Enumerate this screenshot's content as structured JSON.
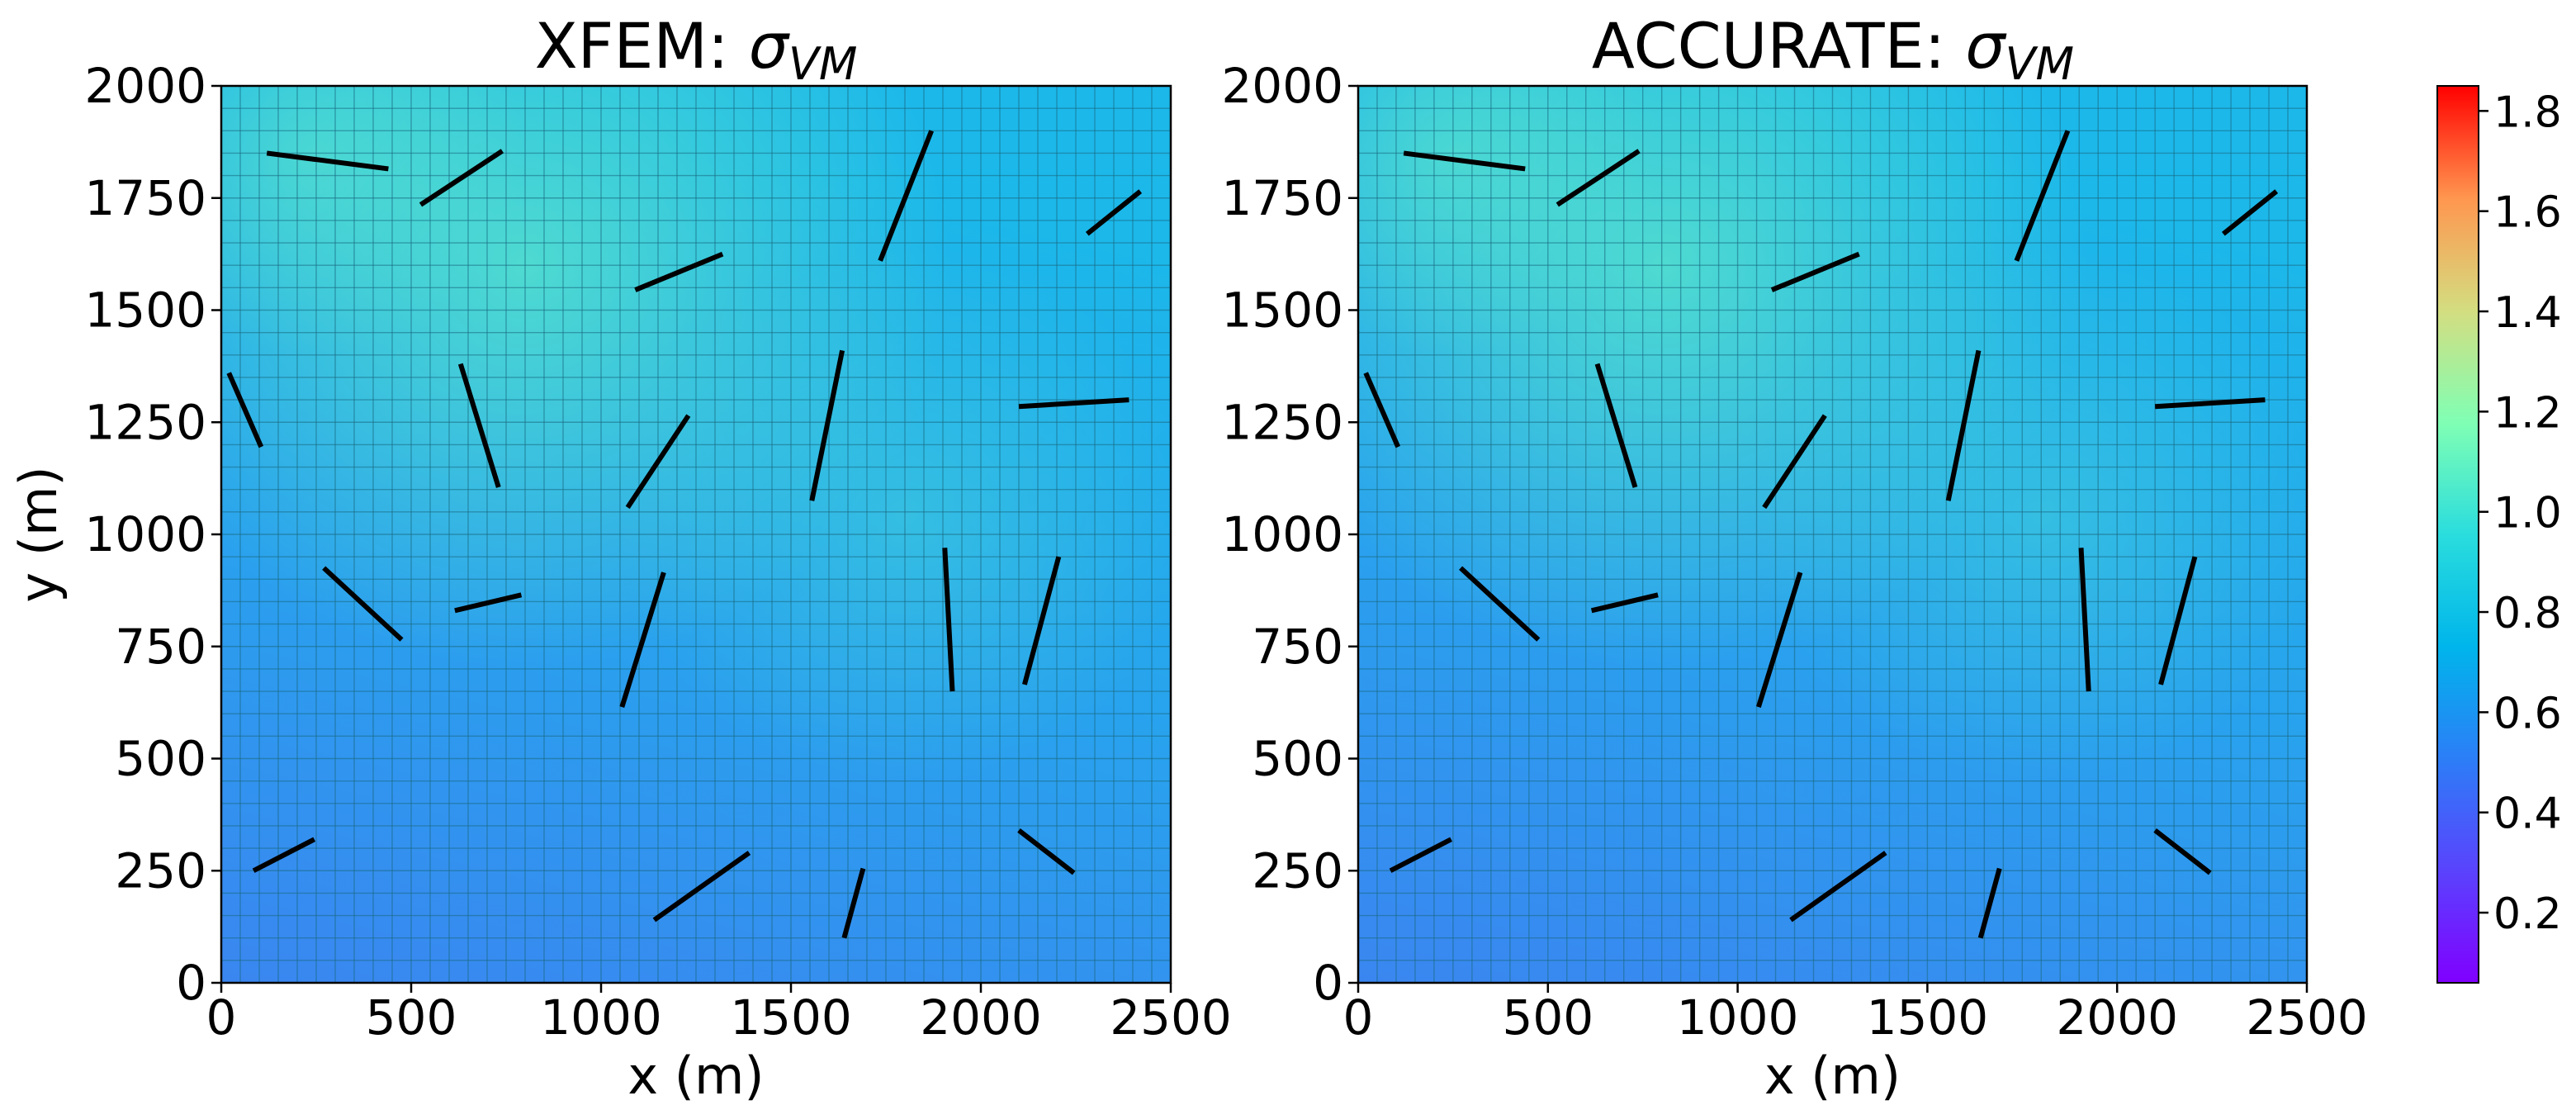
{
  "chart_data": [
    {
      "type": "heatmap",
      "title_text": "XFEM: ",
      "title_symbol": "σ",
      "title_subscript": "VM",
      "xlabel": "x (m)",
      "ylabel": "y (m)",
      "xlim": [
        0,
        2500
      ],
      "ylim": [
        0,
        2000
      ],
      "xticks": [
        0,
        500,
        1000,
        1500,
        2000,
        2500
      ],
      "yticks": [
        0,
        250,
        500,
        750,
        1000,
        1250,
        1500,
        1750,
        2000
      ],
      "grid": true,
      "mesh_divisions": [
        50,
        40
      ],
      "field": "von Mises stress",
      "fractures": [
        [
          [
            120,
            1850
          ],
          [
            440,
            1815
          ]
        ],
        [
          [
            525,
            1735
          ],
          [
            740,
            1855
          ]
        ],
        [
          [
            1090,
            1545
          ],
          [
            1320,
            1625
          ]
        ],
        [
          [
            1735,
            1610
          ],
          [
            1870,
            1900
          ]
        ],
        [
          [
            2280,
            1670
          ],
          [
            2420,
            1765
          ]
        ],
        [
          [
            20,
            1360
          ],
          [
            105,
            1195
          ]
        ],
        [
          [
            630,
            1380
          ],
          [
            730,
            1105
          ]
        ],
        [
          [
            1070,
            1060
          ],
          [
            1230,
            1265
          ]
        ],
        [
          [
            1555,
            1075
          ],
          [
            1635,
            1410
          ]
        ],
        [
          [
            2100,
            1285
          ],
          [
            2390,
            1300
          ]
        ],
        [
          [
            270,
            925
          ],
          [
            475,
            765
          ]
        ],
        [
          [
            615,
            830
          ],
          [
            790,
            865
          ]
        ],
        [
          [
            1055,
            615
          ],
          [
            1165,
            915
          ]
        ],
        [
          [
            1905,
            970
          ],
          [
            1925,
            650
          ]
        ],
        [
          [
            2115,
            665
          ],
          [
            2205,
            950
          ]
        ],
        [
          [
            85,
            250
          ],
          [
            245,
            320
          ]
        ],
        [
          [
            1140,
            140
          ],
          [
            1390,
            290
          ]
        ],
        [
          [
            1640,
            100
          ],
          [
            1690,
            255
          ]
        ],
        [
          [
            2100,
            340
          ],
          [
            2245,
            245
          ]
        ]
      ]
    },
    {
      "type": "heatmap",
      "title_text": "ACCURATE: ",
      "title_symbol": "σ",
      "title_subscript": "VM",
      "xlabel": "x (m)",
      "ylabel": "",
      "xlim": [
        0,
        2500
      ],
      "ylim": [
        0,
        2000
      ],
      "xticks": [
        0,
        500,
        1000,
        1500,
        2000,
        2500
      ],
      "yticks": [
        0,
        250,
        500,
        750,
        1000,
        1250,
        1500,
        1750,
        2000
      ],
      "grid": true,
      "mesh_divisions": [
        50,
        40
      ],
      "field": "von Mises stress",
      "fractures": [
        [
          [
            120,
            1850
          ],
          [
            440,
            1815
          ]
        ],
        [
          [
            525,
            1735
          ],
          [
            740,
            1855
          ]
        ],
        [
          [
            1090,
            1545
          ],
          [
            1320,
            1625
          ]
        ],
        [
          [
            1735,
            1610
          ],
          [
            1870,
            1900
          ]
        ],
        [
          [
            2280,
            1670
          ],
          [
            2420,
            1765
          ]
        ],
        [
          [
            20,
            1360
          ],
          [
            105,
            1195
          ]
        ],
        [
          [
            630,
            1380
          ],
          [
            730,
            1105
          ]
        ],
        [
          [
            1070,
            1060
          ],
          [
            1230,
            1265
          ]
        ],
        [
          [
            1555,
            1075
          ],
          [
            1635,
            1410
          ]
        ],
        [
          [
            2100,
            1285
          ],
          [
            2390,
            1300
          ]
        ],
        [
          [
            270,
            925
          ],
          [
            475,
            765
          ]
        ],
        [
          [
            615,
            830
          ],
          [
            790,
            865
          ]
        ],
        [
          [
            1055,
            615
          ],
          [
            1165,
            915
          ]
        ],
        [
          [
            1905,
            970
          ],
          [
            1925,
            650
          ]
        ],
        [
          [
            2115,
            665
          ],
          [
            2205,
            950
          ]
        ],
        [
          [
            85,
            250
          ],
          [
            245,
            320
          ]
        ],
        [
          [
            1140,
            140
          ],
          [
            1390,
            290
          ]
        ],
        [
          [
            1640,
            100
          ],
          [
            1690,
            255
          ]
        ],
        [
          [
            2100,
            340
          ],
          [
            2245,
            245
          ]
        ]
      ]
    }
  ],
  "colorbar": {
    "colormap": "rainbow",
    "vmin": 0.06,
    "vmax": 1.85,
    "ticks": [
      0.2,
      0.4,
      0.6,
      0.8,
      1.0,
      1.2,
      1.4,
      1.6,
      1.8
    ],
    "tick_labels": [
      "0.2",
      "0.4",
      "0.6",
      "0.8",
      "1.0",
      "1.2",
      "1.4",
      "1.6",
      "1.8"
    ]
  },
  "colors": {
    "fracture": "#000000",
    "mesh_line": "#1a6a82",
    "field_low": "#3a86f0",
    "field_mid": "#1cb8ea",
    "field_high": "#5ee8c8"
  }
}
